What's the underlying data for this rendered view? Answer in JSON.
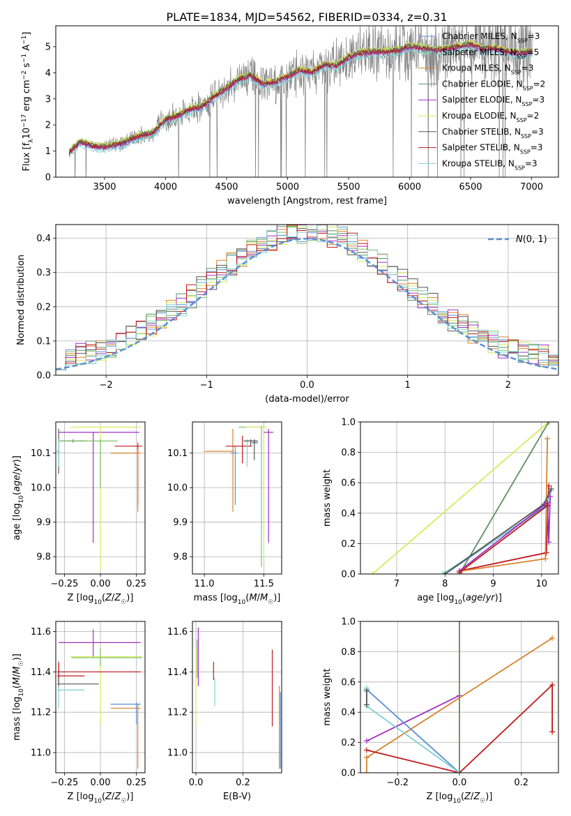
{
  "figure": {
    "title": "PLATE=1834, MJD=54562, FIBERID=0334, z=0.31"
  },
  "legend_entries": [
    {
      "label": "Chabrier MILES, N",
      "sub": "SSP",
      "suffix": "=3",
      "color": "#5b8fd6"
    },
    {
      "label": "Salpeter MILES, N",
      "sub": "SSP",
      "suffix": "=5",
      "color": "#7bbf6a"
    },
    {
      "label": "Kroupa MILES, N",
      "sub": "SSP",
      "suffix": "=3",
      "color": "#d9802a"
    },
    {
      "label": "Chabrier ELODIE, N",
      "sub": "SSP",
      "suffix": "=2",
      "color": "#5c8f62"
    },
    {
      "label": "Salpeter ELODIE, N",
      "sub": "SSP",
      "suffix": "=3",
      "color": "#a12ec2"
    },
    {
      "label": "Kroupa ELODIE, N",
      "sub": "SSP",
      "suffix": "=2",
      "color": "#d7ea5b"
    },
    {
      "label": "Chabrier STELIB, N",
      "sub": "SSP",
      "suffix": "=3",
      "color": "#555555"
    },
    {
      "label": "Salpeter STELIB, N",
      "sub": "SSP",
      "suffix": "=3",
      "color": "#c0161b"
    },
    {
      "label": "Kroupa STELIB, N",
      "sub": "SSP",
      "suffix": "=3",
      "color": "#7fd0d2"
    }
  ],
  "chart_data": [
    {
      "id": "spectrum",
      "type": "line",
      "xlabel": "wavelength [Angstrom, rest frame]",
      "ylabel": "Flux [f_λ 10^-17 erg cm^-2 s^-1 A^-1]",
      "xlim": [
        3100,
        7220
      ],
      "ylim": [
        0,
        5.8
      ],
      "xticks": [
        3500,
        4000,
        4500,
        5000,
        5500,
        6000,
        6500,
        7000
      ],
      "yticks": [
        0,
        1,
        2,
        3,
        4,
        5
      ],
      "grid": false,
      "legend_placement": "upper right",
      "data_color": "#808080",
      "continuum_points": [
        [
          3210,
          0.95
        ],
        [
          3300,
          1.35
        ],
        [
          3400,
          1.2
        ],
        [
          3500,
          1.15
        ],
        [
          3650,
          1.3
        ],
        [
          3800,
          1.6
        ],
        [
          3900,
          1.7
        ],
        [
          4000,
          2.2
        ],
        [
          4100,
          2.35
        ],
        [
          4200,
          2.6
        ],
        [
          4300,
          2.7
        ],
        [
          4400,
          3.1
        ],
        [
          4500,
          3.4
        ],
        [
          4600,
          3.75
        ],
        [
          4700,
          3.9
        ],
        [
          4800,
          3.55
        ],
        [
          4900,
          3.65
        ],
        [
          5000,
          3.85
        ],
        [
          5100,
          4.1
        ],
        [
          5200,
          4.0
        ],
        [
          5300,
          4.3
        ],
        [
          5400,
          4.25
        ],
        [
          5500,
          4.6
        ],
        [
          5600,
          4.75
        ],
        [
          5700,
          4.8
        ],
        [
          5800,
          4.8
        ],
        [
          5900,
          4.85
        ],
        [
          6000,
          5.0
        ],
        [
          6100,
          4.95
        ],
        [
          6200,
          4.85
        ],
        [
          6300,
          4.9
        ],
        [
          6400,
          5.0
        ],
        [
          6500,
          5.1
        ],
        [
          6600,
          4.9
        ],
        [
          6700,
          4.95
        ],
        [
          6800,
          4.8
        ],
        [
          6900,
          4.75
        ],
        [
          7000,
          4.8
        ]
      ],
      "model_offsets": [
        0.0,
        0.08,
        0.05,
        0.02,
        -0.05,
        0.1,
        0.04,
        0.0,
        -0.15
      ]
    },
    {
      "id": "residuals",
      "type": "step",
      "xlabel": "(data-model)/error",
      "ylabel": "Normed distribution",
      "xlim": [
        -2.5,
        2.5
      ],
      "ylim": [
        0,
        0.44
      ],
      "xticks": [
        -2,
        -1,
        0,
        1,
        2
      ],
      "yticks": [
        0.0,
        0.1,
        0.2,
        0.3,
        0.4
      ],
      "grid": true,
      "legend_placement": "upper right",
      "gaussian_label": "N(0,1)",
      "gaussian_color": "#5b8fd6",
      "bin_width": 0.1
    },
    {
      "id": "age_vs_Z",
      "type": "errorbar",
      "xlabel": "Z [log10(Z/Z☉)]",
      "ylabel": "age  [log10(age/yr)]",
      "xlim": [
        -0.31,
        0.31
      ],
      "ylim": [
        9.75,
        10.19
      ],
      "xticks": [
        -0.25,
        0.0,
        0.25
      ],
      "yticks": [
        9.8,
        9.9,
        10.0,
        10.1
      ],
      "grid": true,
      "points": [
        {
          "x": -0.29,
          "y": 10.105,
          "xlo": -0.3,
          "xhi": -0.29,
          "ylo": 10.04,
          "yhi": 10.17,
          "series": 6
        },
        {
          "x": -0.19,
          "y": 10.135,
          "xlo": -0.29,
          "xhi": -0.1,
          "ylo": 10.13,
          "yhi": 10.14,
          "series": 3
        },
        {
          "x": -0.05,
          "y": 10.16,
          "xlo": -0.29,
          "xhi": 0.27,
          "ylo": 9.84,
          "yhi": 10.16,
          "series": 4
        },
        {
          "x": 0.0,
          "y": 10.175,
          "xlo": -0.21,
          "xhi": 0.28,
          "ylo": 9.76,
          "yhi": 10.18,
          "series": 5
        },
        {
          "x": 0.0,
          "y": 10.135,
          "xlo": -0.29,
          "xhi": 0.12,
          "ylo": 10.0,
          "yhi": 10.14,
          "series": 1
        },
        {
          "x": 0.26,
          "y": 10.12,
          "xlo": 0.1,
          "xhi": 0.29,
          "ylo": 9.95,
          "yhi": 10.13,
          "series": 7
        },
        {
          "x": 0.26,
          "y": 10.1,
          "xlo": 0.07,
          "xhi": 0.28,
          "ylo": 9.93,
          "yhi": 10.11,
          "series": 2
        },
        {
          "x": -0.29,
          "y": 10.1,
          "xlo": -0.3,
          "xhi": -0.28,
          "ylo": 10.06,
          "yhi": 10.14,
          "series": 8
        }
      ]
    },
    {
      "id": "age_vs_mass",
      "type": "errorbar",
      "xlabel": "mass [log10(M/M☉)]",
      "ylabel": "",
      "xlim": [
        10.9,
        11.65
      ],
      "ylim": [
        9.75,
        10.19
      ],
      "xticks": [
        11.0,
        11.5
      ],
      "yticks": [
        9.8,
        9.9,
        10.0,
        10.1
      ],
      "grid": true,
      "points": [
        {
          "x": 11.24,
          "y": 10.105,
          "xlo": 11.0,
          "xhi": 11.25,
          "ylo": 9.93,
          "yhi": 10.17,
          "series": 2
        },
        {
          "x": 11.26,
          "y": 10.1,
          "xlo": 11.22,
          "xhi": 11.28,
          "ylo": 9.95,
          "yhi": 10.12,
          "series": 0
        },
        {
          "x": 11.32,
          "y": 10.12,
          "xlo": 11.18,
          "xhi": 11.4,
          "ylo": 10.07,
          "yhi": 10.15,
          "series": 7
        },
        {
          "x": 11.36,
          "y": 10.135,
          "xlo": 11.33,
          "xhi": 11.42,
          "ylo": 10.06,
          "yhi": 10.14,
          "series": 8
        },
        {
          "x": 11.39,
          "y": 10.135,
          "xlo": 11.33,
          "xhi": 11.45,
          "ylo": 10.12,
          "yhi": 10.14,
          "series": 6
        },
        {
          "x": 11.42,
          "y": 10.13,
          "xlo": 11.4,
          "xhi": 11.45,
          "ylo": 10.08,
          "yhi": 10.14,
          "series": 6
        },
        {
          "x": 11.48,
          "y": 10.175,
          "xlo": 11.29,
          "xhi": 11.5,
          "ylo": 9.77,
          "yhi": 10.18,
          "series": 1
        },
        {
          "x": 11.5,
          "y": 10.175,
          "xlo": 11.35,
          "xhi": 11.52,
          "ylo": 9.79,
          "yhi": 10.18,
          "series": 5
        },
        {
          "x": 11.54,
          "y": 10.16,
          "xlo": 11.5,
          "xhi": 11.58,
          "ylo": 9.84,
          "yhi": 10.17,
          "series": 4
        }
      ]
    },
    {
      "id": "massweight_vs_age",
      "type": "line",
      "xlabel": "age  [log10(age/yr)]",
      "ylabel": "mass weight",
      "xlim": [
        6.25,
        10.35
      ],
      "ylim": [
        0,
        1
      ],
      "xticks": [
        7,
        8,
        9,
        10
      ],
      "yticks": [
        0.0,
        0.2,
        0.4,
        0.6,
        0.8,
        1.0
      ],
      "grid": true,
      "series": [
        {
          "series": 5,
          "points": [
            [
              6.5,
              0.0
            ],
            [
              10.15,
              1.0
            ]
          ]
        },
        {
          "series": 3,
          "points": [
            [
              8.3,
              0.0
            ],
            [
              10.15,
              1.0
            ]
          ]
        },
        {
          "series": 7,
          "points": [
            [
              8.3,
              0.02
            ],
            [
              10.1,
              0.14
            ],
            [
              10.15,
              0.58
            ]
          ]
        },
        {
          "series": 2,
          "points": [
            [
              8.35,
              0.02
            ],
            [
              10.08,
              0.1
            ],
            [
              10.12,
              0.89
            ]
          ]
        },
        {
          "series": 0,
          "points": [
            [
              8.0,
              0.0
            ],
            [
              10.1,
              0.45
            ],
            [
              10.2,
              0.55
            ]
          ]
        },
        {
          "series": 8,
          "points": [
            [
              7.95,
              0.0
            ],
            [
              10.1,
              0.44
            ],
            [
              10.2,
              0.55
            ]
          ]
        },
        {
          "series": 6,
          "points": [
            [
              8.0,
              0.0
            ],
            [
              10.05,
              0.46
            ],
            [
              10.2,
              0.56
            ]
          ]
        },
        {
          "series": 4,
          "points": [
            [
              8.3,
              0.02
            ],
            [
              10.12,
              0.47
            ],
            [
              10.15,
              0.21
            ],
            [
              10.18,
              0.51
            ]
          ]
        },
        {
          "series": 7,
          "points": [
            [
              8.3,
              0.01
            ],
            [
              10.12,
              0.45
            ]
          ]
        }
      ]
    },
    {
      "id": "mass_vs_Z",
      "type": "errorbar",
      "xlabel": "Z [log10(Z/Z☉)]",
      "ylabel": "mass [log10(M/M☉)]",
      "xlim": [
        -0.31,
        0.31
      ],
      "ylim": [
        10.9,
        11.65
      ],
      "xticks": [
        -0.25,
        0.0,
        0.25
      ],
      "yticks": [
        11.0,
        11.2,
        11.4,
        11.6
      ],
      "grid": true,
      "points": [
        {
          "x": -0.05,
          "y": 11.545,
          "xlo": -0.29,
          "xhi": 0.28,
          "ylo": 11.47,
          "yhi": 11.61,
          "series": 4
        },
        {
          "x": 0.0,
          "y": 11.475,
          "xlo": -0.21,
          "xhi": 0.29,
          "ylo": 11.14,
          "yhi": 11.49,
          "series": 5
        },
        {
          "x": 0.0,
          "y": 11.47,
          "xlo": -0.2,
          "xhi": 0.29,
          "ylo": 11.43,
          "yhi": 11.52,
          "series": 1
        },
        {
          "x": -0.29,
          "y": 11.4,
          "xlo": -0.3,
          "xhi": 0.28,
          "ylo": 11.35,
          "yhi": 11.45,
          "series": 7
        },
        {
          "x": -0.29,
          "y": 11.38,
          "xlo": -0.3,
          "xhi": -0.11,
          "ylo": 11.35,
          "yhi": 11.44,
          "series": 7
        },
        {
          "x": -0.29,
          "y": 11.34,
          "xlo": -0.3,
          "xhi": -0.01,
          "ylo": 11.32,
          "yhi": 11.37,
          "series": 6
        },
        {
          "x": -0.29,
          "y": 11.31,
          "xlo": -0.3,
          "xhi": -0.11,
          "ylo": 11.22,
          "yhi": 11.33,
          "series": 8
        },
        {
          "x": 0.26,
          "y": 11.22,
          "xlo": 0.07,
          "xhi": 0.28,
          "ylo": 10.92,
          "yhi": 11.24,
          "series": 2
        },
        {
          "x": 0.25,
          "y": 11.24,
          "xlo": 0.07,
          "xhi": 0.28,
          "ylo": 11.14,
          "yhi": 11.25,
          "series": 0
        }
      ]
    },
    {
      "id": "mass_vs_EBV",
      "type": "errorbar",
      "xlabel": "E(B-V)",
      "ylabel": "",
      "xlim": [
        -0.015,
        0.365
      ],
      "ylim": [
        10.9,
        11.65
      ],
      "xticks": [
        0.0,
        0.2
      ],
      "yticks": [
        11.0,
        11.2,
        11.4,
        11.6
      ],
      "grid": true,
      "points": [
        {
          "x": 0.005,
          "y": 11.5,
          "ylo": 11.37,
          "yhi": 11.56,
          "series": 1
        },
        {
          "x": 0.01,
          "y": 11.47,
          "ylo": 11.33,
          "yhi": 11.62,
          "series": 4
        },
        {
          "x": 0.0,
          "y": 11.45,
          "ylo": 11.14,
          "yhi": 11.52,
          "series": 5
        },
        {
          "x": 0.075,
          "y": 11.4,
          "ylo": 11.36,
          "yhi": 11.45,
          "series": 7
        },
        {
          "x": 0.08,
          "y": 11.3,
          "ylo": 11.23,
          "yhi": 11.37,
          "series": 8
        },
        {
          "x": 0.325,
          "y": 11.4,
          "ylo": 11.13,
          "yhi": 11.51,
          "series": 7
        },
        {
          "x": 0.355,
          "y": 11.22,
          "ylo": 10.92,
          "yhi": 11.33,
          "series": 2
        },
        {
          "x": 0.36,
          "y": 11.24,
          "ylo": 10.92,
          "yhi": 11.3,
          "series": 0
        }
      ]
    },
    {
      "id": "massweight_vs_Z",
      "type": "line",
      "xlabel": "Z [log10(Z/Z☉)]",
      "ylabel": "mass weight",
      "xlim": [
        -0.32,
        0.32
      ],
      "ylim": [
        0,
        1
      ],
      "xticks": [
        -0.2,
        0.0,
        0.2
      ],
      "yticks": [
        0.0,
        0.2,
        0.4,
        0.6,
        0.8,
        1.0
      ],
      "grid": true,
      "series": [
        {
          "series": 2,
          "points": [
            [
              -0.3,
              0.1
            ],
            [
              0.3,
              0.89
            ]
          ]
        },
        {
          "series": 2,
          "points": [
            [
              -0.3,
              0.0
            ],
            [
              -0.3,
              0.1
            ]
          ]
        },
        {
          "series": 4,
          "points": [
            [
              -0.3,
              0.21
            ],
            [
              0.0,
              0.51
            ]
          ]
        },
        {
          "series": 7,
          "points": [
            [
              -0.3,
              0.15
            ],
            [
              0.0,
              0.0
            ],
            [
              0.3,
              0.58
            ],
            [
              0.3,
              0.27
            ]
          ]
        },
        {
          "series": 0,
          "points": [
            [
              -0.3,
              0.55
            ],
            [
              0.0,
              0.0
            ]
          ]
        },
        {
          "series": 8,
          "points": [
            [
              -0.3,
              0.56
            ],
            [
              -0.3,
              0.44
            ],
            [
              0.0,
              0.0
            ]
          ]
        },
        {
          "series": 6,
          "points": [
            [
              -0.3,
              0.54
            ],
            [
              -0.3,
              0.45
            ]
          ]
        },
        {
          "series": 5,
          "points": [
            [
              0.0,
              0.0
            ],
            [
              0.0,
              1.0
            ]
          ]
        },
        {
          "series": 3,
          "points": [
            [
              0.0,
              0.0
            ],
            [
              0.0,
              1.0
            ]
          ]
        }
      ]
    }
  ]
}
